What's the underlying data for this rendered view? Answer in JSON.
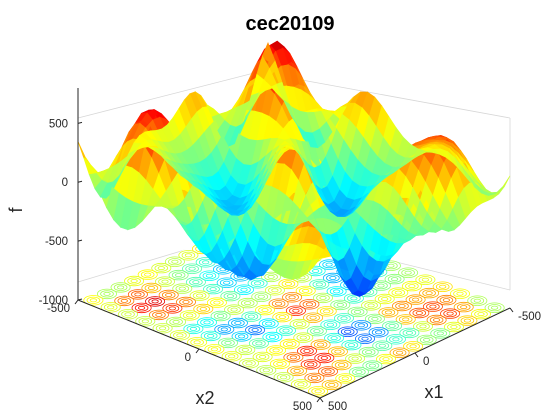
{
  "chart_data": {
    "type": "surface",
    "title": "cec20109",
    "xlabel": "x1",
    "ylabel": "x2",
    "zlabel": "f",
    "xlim": [
      -500,
      500
    ],
    "ylim": [
      -500,
      500
    ],
    "zlim": [
      -1000,
      800
    ],
    "x_ticks": [
      "-500",
      "0",
      "500"
    ],
    "y_ticks": [
      "-500",
      "0",
      "500"
    ],
    "z_ticks": [
      "-1000",
      "-500",
      "0",
      "500"
    ],
    "x_tick_values": [
      -500,
      0,
      500
    ],
    "y_tick_values": [
      -500,
      0,
      500
    ],
    "z_tick_values": [
      -1000,
      -500,
      0,
      500
    ],
    "colormap": "jet",
    "contour_projection": true,
    "grid": true
  }
}
